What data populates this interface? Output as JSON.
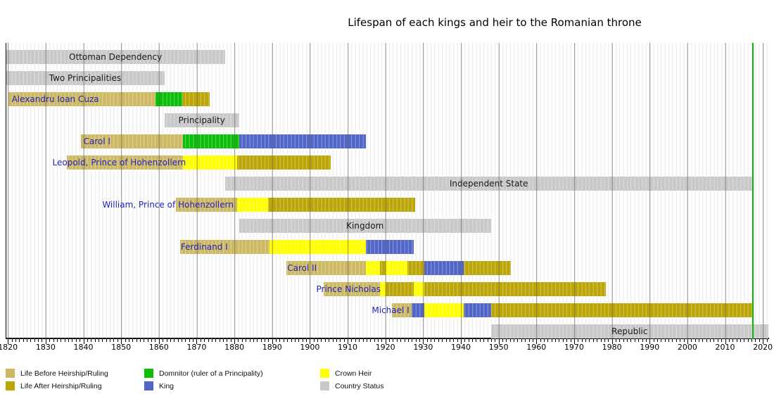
{
  "title": "Lifespan of each kings and heir to the Romanian throne",
  "colors": {
    "before": "#cdb863",
    "after": "#bca506",
    "domnitor": "#0abe0a",
    "king": "#5165c6",
    "heir": "#ffff00",
    "status": "#c9c9c9",
    "marker": "#00bb00",
    "person_label": "#2323c0",
    "grid_year": "#e2e2e2",
    "grid_decade": "#8d8d8d"
  },
  "legend": [
    {
      "swatch": "before",
      "label": "Life Before Heirship/Ruling"
    },
    {
      "swatch": "after",
      "label": "Life After Heirship/Ruling"
    },
    {
      "swatch": "domnitor",
      "label": "Domnitor (ruler of a Principality)"
    },
    {
      "swatch": "king",
      "label": "King"
    },
    {
      "swatch": "heir",
      "label": "Crown Heir"
    },
    {
      "swatch": "status",
      "label": "Country Status"
    }
  ],
  "chart_data": {
    "type": "timeline",
    "title": "Lifespan of each kings and heir to the Romanian throne",
    "x_range": [
      1819.4,
      2021.4
    ],
    "marker_line_year": 2017.2,
    "x_axis": {
      "tick_interval_years": 1,
      "label_interval_years": 10,
      "tick_labels": [
        "1820",
        "1830",
        "1840",
        "1850",
        "1860",
        "1870",
        "1880",
        "1890",
        "1900",
        "1910",
        "1920",
        "1930",
        "1940",
        "1950",
        "1960",
        "1970",
        "1980",
        "1990",
        "2000",
        "2010",
        "2020"
      ]
    },
    "rows": [
      {
        "kind": "status",
        "label": "Ottoman Dependency",
        "start": 1819.4,
        "end": 1877.6
      },
      {
        "kind": "status",
        "label": "Two Principalities",
        "start": 1819.4,
        "end": 1861.5
      },
      {
        "kind": "person",
        "label": "Alexandru Ioan Cuza",
        "label_year": 1821.0,
        "segments": [
          {
            "from": 1820.2,
            "to": 1859.1,
            "type": "before"
          },
          {
            "from": 1859.1,
            "to": 1866.2,
            "type": "domnitor"
          },
          {
            "from": 1866.2,
            "to": 1873.4,
            "type": "after"
          }
        ]
      },
      {
        "kind": "status",
        "label": "Principality",
        "start": 1861.5,
        "end": 1881.2
      },
      {
        "kind": "person",
        "label": "Carol I",
        "label_year": 1840.0,
        "segments": [
          {
            "from": 1839.3,
            "to": 1866.3,
            "type": "before"
          },
          {
            "from": 1866.3,
            "to": 1881.2,
            "type": "domnitor"
          },
          {
            "from": 1881.2,
            "to": 1914.8,
            "type": "king"
          }
        ]
      },
      {
        "kind": "person",
        "label": "Leopold, Prince of Hohenzollern",
        "label_year": 1831.8,
        "segments": [
          {
            "from": 1835.7,
            "to": 1866.4,
            "type": "before"
          },
          {
            "from": 1866.4,
            "to": 1880.8,
            "type": "heir"
          },
          {
            "from": 1880.8,
            "to": 1905.5,
            "type": "after"
          }
        ]
      },
      {
        "kind": "status",
        "label": "Independent State",
        "start": 1877.6,
        "end": 2017.2
      },
      {
        "kind": "person",
        "label": "William, Prince of Hohenzollern",
        "label_year": 1845.0,
        "segments": [
          {
            "from": 1864.6,
            "to": 1880.8,
            "type": "before"
          },
          {
            "from": 1880.8,
            "to": 1889.0,
            "type": "heir"
          },
          {
            "from": 1889.0,
            "to": 1927.8,
            "type": "after"
          }
        ]
      },
      {
        "kind": "status",
        "label": "Kingdom",
        "start": 1881.2,
        "end": 1948.0
      },
      {
        "kind": "person",
        "label": "Ferdinand I",
        "label_year": 1865.8,
        "segments": [
          {
            "from": 1865.6,
            "to": 1889.3,
            "type": "before"
          },
          {
            "from": 1889.3,
            "to": 1914.8,
            "type": "heir"
          },
          {
            "from": 1914.8,
            "to": 1927.6,
            "type": "king"
          }
        ]
      },
      {
        "kind": "person",
        "label": "Carol II",
        "label_year": 1894.0,
        "segments": [
          {
            "from": 1893.8,
            "to": 1914.8,
            "type": "before"
          },
          {
            "from": 1914.8,
            "to": 1918.6,
            "type": "heir"
          },
          {
            "from": 1918.6,
            "to": 1920.1,
            "type": "after"
          },
          {
            "from": 1920.1,
            "to": 1925.9,
            "type": "heir"
          },
          {
            "from": 1925.9,
            "to": 1930.4,
            "type": "after"
          },
          {
            "from": 1930.4,
            "to": 1940.7,
            "type": "king"
          },
          {
            "from": 1940.7,
            "to": 1953.3,
            "type": "after"
          }
        ]
      },
      {
        "kind": "person",
        "label": "Prince Nicholas",
        "label_year": 1901.7,
        "segments": [
          {
            "from": 1903.6,
            "to": 1918.6,
            "type": "before"
          },
          {
            "from": 1918.6,
            "to": 1920.1,
            "type": "heir"
          },
          {
            "from": 1920.1,
            "to": 1927.6,
            "type": "after"
          },
          {
            "from": 1927.6,
            "to": 1930.4,
            "type": "heir"
          },
          {
            "from": 1930.4,
            "to": 1978.4,
            "type": "after"
          }
        ]
      },
      {
        "kind": "person",
        "label": "Michael I",
        "label_year": 1916.4,
        "segments": [
          {
            "from": 1921.8,
            "to": 1927.0,
            "type": "before"
          },
          {
            "from": 1927.0,
            "to": 1930.4,
            "type": "king"
          },
          {
            "from": 1930.4,
            "to": 1940.7,
            "type": "heir"
          },
          {
            "from": 1940.7,
            "to": 1948.0,
            "type": "king"
          },
          {
            "from": 1948.0,
            "to": 2017.2,
            "type": "after"
          }
        ]
      },
      {
        "kind": "status",
        "label": "Republic",
        "start": 1948.0,
        "end": 2021.4
      }
    ]
  }
}
